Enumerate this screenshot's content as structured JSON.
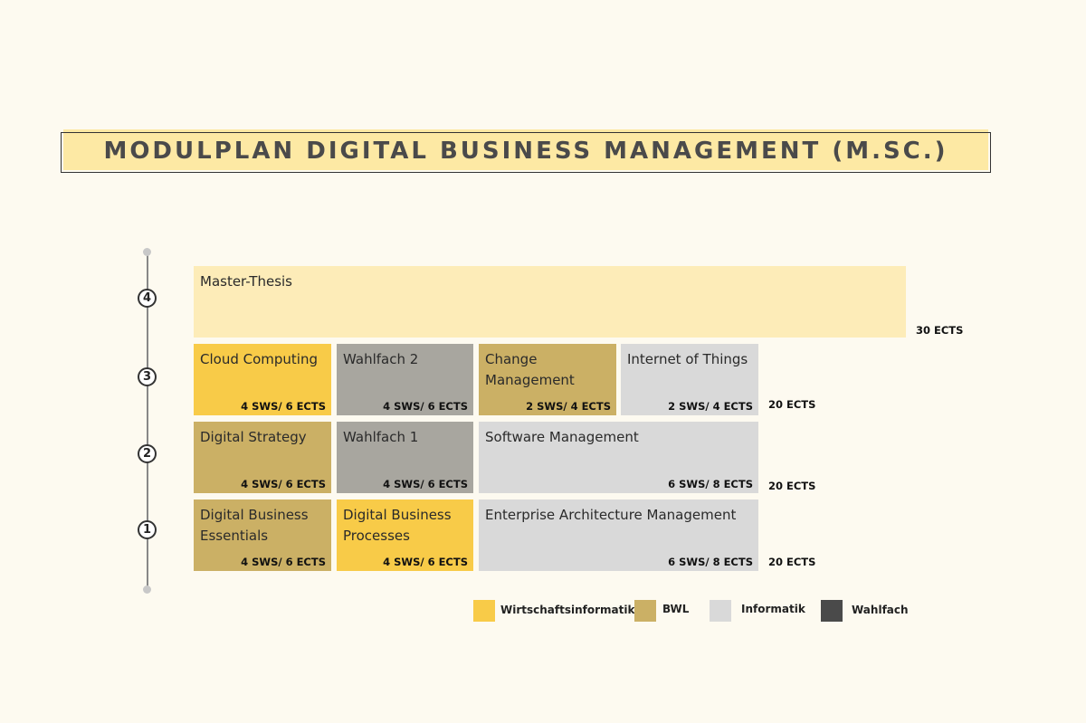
{
  "title": "MODULPLAN DIGITAL BUSINESS MANAGEMENT (M.SC.)",
  "semesters": [
    "4",
    "3",
    "2",
    "1"
  ],
  "modules": {
    "thesis": {
      "name": "Master-Thesis",
      "credits": "30 ECTS"
    },
    "cloud": {
      "name": "Cloud Computing",
      "credits": "4 SWS/ 6 ECTS"
    },
    "wahlfach2": {
      "name": "Wahlfach 2",
      "credits": "4 SWS/ 6 ECTS"
    },
    "change": {
      "name": "Change Management",
      "credits": "2 SWS/ 4 ECTS"
    },
    "iot": {
      "name": "Internet of Things",
      "credits": "2 SWS/ 4 ECTS"
    },
    "strategy": {
      "name": "Digital Strategy",
      "credits": "4 SWS/ 6 ECTS"
    },
    "wahlfach1": {
      "name": "Wahlfach 1",
      "credits": "4 SWS/ 6 ECTS"
    },
    "software": {
      "name": "Software Management",
      "credits": "6 SWS/ 8 ECTS"
    },
    "essentials": {
      "name": "Digital Business Essentials",
      "credits": "4 SWS/ 6 ECTS"
    },
    "processes": {
      "name": "Digital Business Processes",
      "credits": "4 SWS/ 6 ECTS"
    },
    "enterprise": {
      "name": "Enterprise Architecture Management",
      "credits": "6 SWS/ 8 ECTS"
    }
  },
  "row_totals": {
    "sem3": "20 ECTS",
    "sem2": "20 ECTS",
    "sem1": "20 ECTS"
  },
  "legend": [
    {
      "label": "Wirtschaftsinformatik",
      "color": "#f8cb48"
    },
    {
      "label": "BWL",
      "color": "#cbb065"
    },
    {
      "label": "Informatik",
      "color": "#d9d9d9"
    },
    {
      "label": "Wahlfach",
      "color": "#4a4a4a"
    }
  ]
}
